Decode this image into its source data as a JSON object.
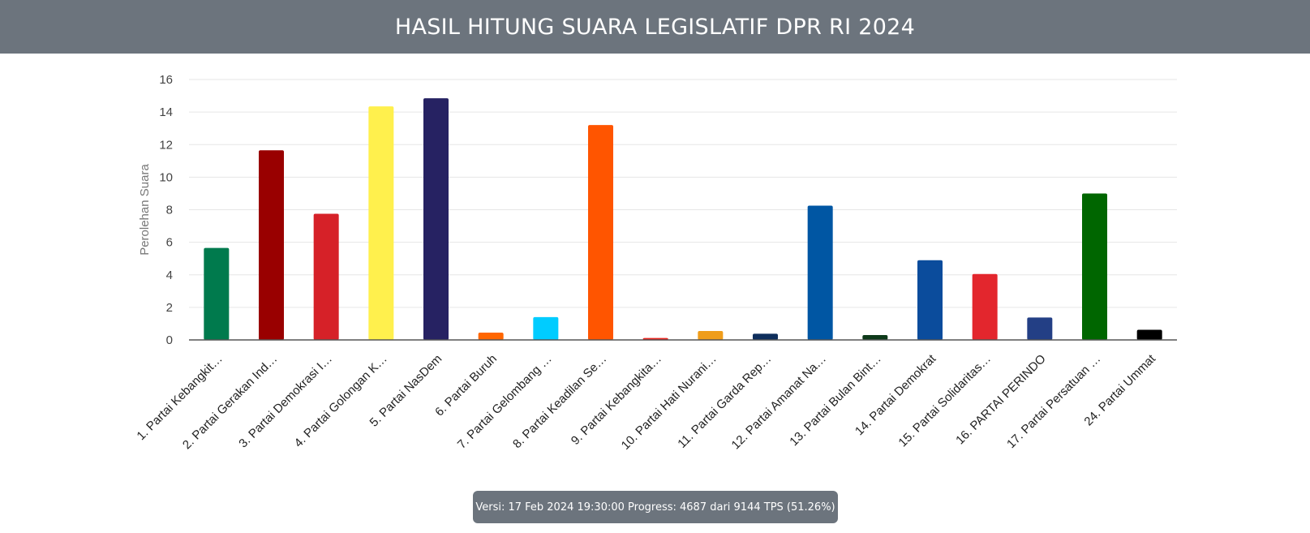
{
  "header": {
    "title": "HASIL HITUNG SUARA LEGISLATIF DPR RI 2024"
  },
  "footer": {
    "status": "Versi: 17 Feb 2024 19:30:00 Progress: 4687 dari 9144 TPS (51.26%)"
  },
  "chart_data": {
    "type": "bar",
    "title": "HASIL HITUNG SUARA LEGISLATIF DPR RI 2024",
    "ylabel": "Perolehan Suara",
    "xlabel": "",
    "ylim": [
      0,
      16
    ],
    "yticks": [
      0,
      2,
      4,
      6,
      8,
      10,
      12,
      14,
      16
    ],
    "grid": true,
    "categories": [
      "1. Partai Kebangkit…",
      "2. Partai Gerakan Ind…",
      "3. Partai Demokrasi I…",
      "4. Partai Golongan K…",
      "5. Partai NasDem",
      "6. Partai Buruh",
      "7. Partai Gelombang …",
      "8. Partai Keadilan Se…",
      "9. Partai Kebangkita…",
      "10. Partai Hati Nurani…",
      "11. Partai Garda Rep…",
      "12. Partai Amanat Na…",
      "13. Partai Bulan Bint…",
      "14. Partai Demokrat",
      "15. Partai Solidaritas…",
      "16. PARTAI PERINDO",
      "17. Partai Persatuan …",
      "24. Partai Ummat"
    ],
    "values": [
      5.65,
      11.65,
      7.75,
      14.35,
      14.85,
      0.45,
      1.4,
      13.2,
      0.12,
      0.55,
      0.38,
      8.25,
      0.3,
      4.9,
      4.05,
      1.38,
      9.0,
      0.62
    ],
    "colors": [
      "#007a4d",
      "#990000",
      "#d62128",
      "#fff04d",
      "#262262",
      "#ff6600",
      "#00ccff",
      "#ff5500",
      "#e8251f",
      "#f09d1a",
      "#0e2e5c",
      "#0056a3",
      "#0e3a1a",
      "#0b4c9c",
      "#e3262d",
      "#233f85",
      "#006600",
      "#000000"
    ]
  }
}
